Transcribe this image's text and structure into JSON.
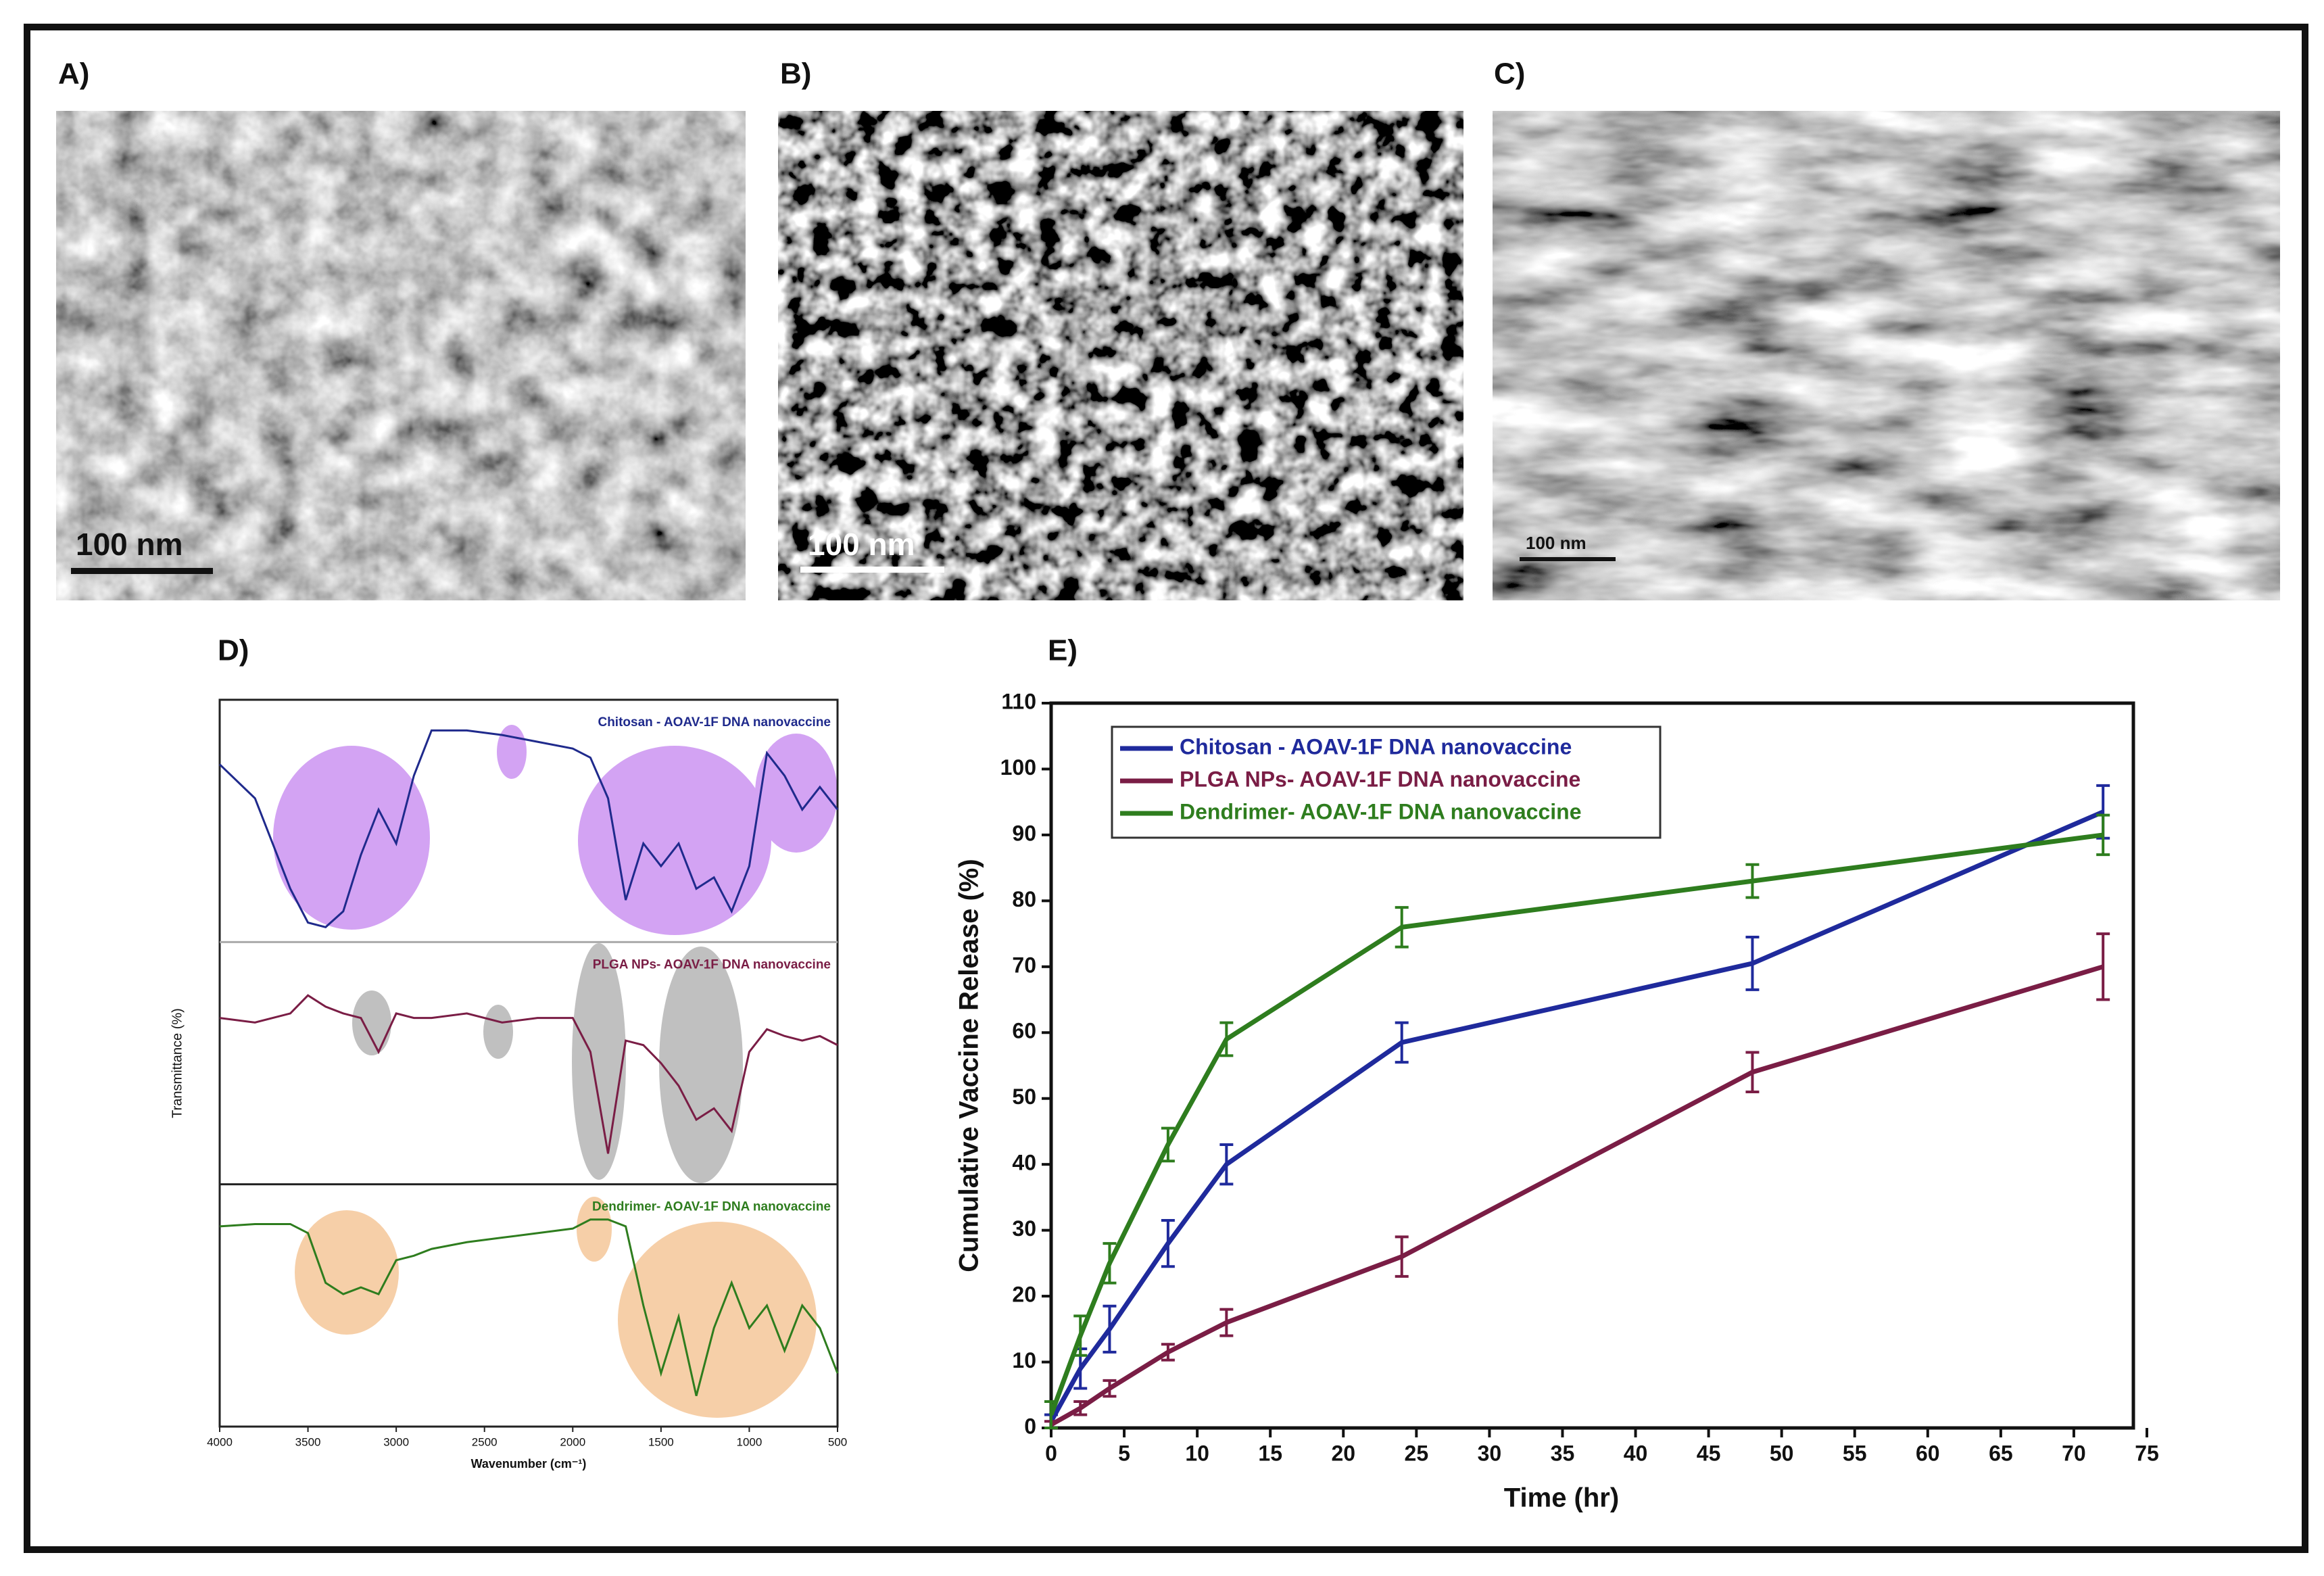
{
  "panels": [
    {
      "label": "A)",
      "scale_bar": "100 nm"
    },
    {
      "label": "B)",
      "scale_bar": "100 nm"
    },
    {
      "label": "C)",
      "scale_bar": "100 nm"
    },
    {
      "label": "D)"
    },
    {
      "label": "E)"
    }
  ],
  "chart_data": [
    {
      "type": "spectra",
      "xlabel": "Wavenumber (cm⁻¹)",
      "ylabel": "Transmittance (%)",
      "xlim": [
        4000,
        500
      ],
      "xticks": [
        4000,
        3500,
        3000,
        2500,
        2000,
        1500,
        1000,
        500
      ],
      "ylim": [
        0,
        100
      ],
      "x": [
        4000,
        3800,
        3600,
        3500,
        3400,
        3300,
        3200,
        3100,
        3000,
        2900,
        2800,
        2600,
        2400,
        2200,
        2000,
        1900,
        1800,
        1700,
        1600,
        1500,
        1400,
        1300,
        1200,
        1100,
        1000,
        900,
        800,
        700,
        600,
        500
      ],
      "series": [
        {
          "name": "Chitosan - AOAV-1F DNA nanovaccine",
          "color": "#1f2a8c",
          "values": [
            75,
            60,
            20,
            5,
            3,
            10,
            35,
            55,
            40,
            70,
            90,
            90,
            88,
            85,
            82,
            78,
            60,
            15,
            40,
            30,
            40,
            20,
            25,
            10,
            30,
            80,
            70,
            55,
            65,
            55
          ]
        },
        {
          "name": "PLGA NPs- AOAV-1F DNA nanovaccine",
          "color": "#7a1d45",
          "values": [
            70,
            68,
            72,
            80,
            75,
            72,
            70,
            55,
            72,
            70,
            70,
            72,
            68,
            70,
            70,
            55,
            10,
            60,
            58,
            50,
            40,
            25,
            30,
            20,
            55,
            65,
            62,
            60,
            62,
            58
          ]
        },
        {
          "name": "Dendrimer- AOAV-1F DNA nanovaccine",
          "color": "#2e7d1e",
          "values": [
            85,
            86,
            86,
            82,
            60,
            55,
            58,
            55,
            70,
            72,
            75,
            78,
            80,
            82,
            84,
            88,
            88,
            85,
            50,
            20,
            45,
            10,
            40,
            60,
            40,
            50,
            30,
            50,
            40,
            20
          ]
        }
      ]
    },
    {
      "type": "line",
      "xlabel": "Time (hr)",
      "ylabel": "Cumulative Vaccine Release (%)",
      "xlim": [
        0,
        75
      ],
      "xticks": [
        0,
        5,
        10,
        15,
        20,
        25,
        30,
        35,
        40,
        45,
        50,
        55,
        60,
        65,
        70,
        75
      ],
      "ylim": [
        0,
        110
      ],
      "yticks": [
        0,
        10,
        20,
        30,
        40,
        50,
        60,
        70,
        80,
        90,
        100,
        110
      ],
      "legend": "upper left",
      "x": [
        0,
        2,
        4,
        8,
        12,
        24,
        48,
        72
      ],
      "series": [
        {
          "name": "Chitosan - AOAV-1F DNA nanovaccine",
          "color": "#1f2a9c",
          "values": [
            1,
            9,
            15,
            28,
            40,
            58.5,
            70.5,
            93.5
          ],
          "error": [
            1,
            3,
            3.5,
            3.5,
            3,
            3,
            4,
            4
          ]
        },
        {
          "name": "PLGA NPs- AOAV-1F DNA nanovaccine",
          "color": "#7a1d45",
          "values": [
            0.5,
            3,
            6,
            11.5,
            16,
            26,
            54,
            70
          ],
          "error": [
            0.5,
            1,
            1.2,
            1.2,
            2,
            3,
            3,
            5
          ]
        },
        {
          "name": "Dendrimer- AOAV-1F DNA nanovaccine",
          "color": "#2e7d1e",
          "values": [
            2,
            14,
            25,
            43,
            59,
            76,
            83,
            90
          ],
          "error": [
            2,
            3,
            3,
            2.5,
            2.5,
            3,
            2.5,
            3
          ]
        }
      ]
    }
  ]
}
